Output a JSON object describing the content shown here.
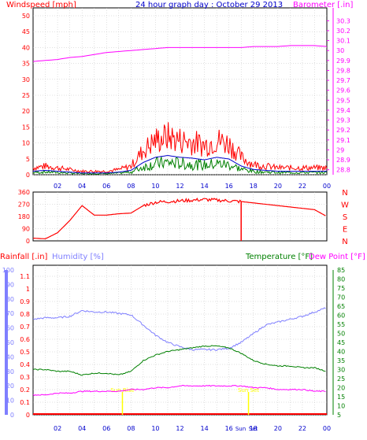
{
  "title": "24 hour graph day : October 29 2013",
  "colors": {
    "windspeed": "#ff0000",
    "gust": "#ff0000",
    "avgwind": "#0000cc",
    "avg2": "#008000",
    "barometer": "#ff00ff",
    "direction": "#ff0000",
    "rainfall": "#ff0000",
    "humidity": "#7f7fff",
    "temperature": "#008000",
    "dewpoint": "#ff00ff",
    "title": "#0000cc",
    "axis": "#000000",
    "grid": "#c0c0c0",
    "sun": "#ffff00"
  },
  "x_ticks": [
    "02",
    "04",
    "06",
    "08",
    "10",
    "12",
    "14",
    "16",
    "18",
    "20",
    "22",
    "00"
  ],
  "wind_panel": {
    "left_label": "Windspeed [mph]",
    "right_label": "Barometer [.in]",
    "left_ticks": [
      "50",
      "45",
      "40",
      "35",
      "30",
      "25",
      "20",
      "15",
      "10",
      "5",
      "0"
    ],
    "right_ticks": [
      "30.3",
      "30.2",
      "30.1",
      "30",
      "29.9",
      "29.8",
      "29.7",
      "29.6",
      "29.5",
      "29.4",
      "29.3",
      "29.2",
      "29.1",
      "29",
      "28.9",
      "28.8"
    ]
  },
  "dir_panel": {
    "left_ticks": [
      "360",
      "270",
      "180",
      "90",
      "0"
    ],
    "right_ticks": [
      "N",
      "W",
      "S",
      "E",
      "N"
    ]
  },
  "bottom_panel": {
    "rain_label": "Rainfall [.in]",
    "hum_label": "Humidity [%]",
    "temp_label": "Temperature [°F]",
    "dew_label": "Dew Point [°F]",
    "hum_ticks": [
      "100",
      "90",
      "80",
      "70",
      "60",
      "50",
      "40",
      "30",
      "20",
      "10",
      "0"
    ],
    "rain_ticks": [
      "1.1",
      "1",
      "0.9",
      "0.8",
      "0.7",
      "0.6",
      "0.5",
      "0.4",
      "0.3",
      "0.2",
      "0.1",
      "0"
    ],
    "temp_ticks": [
      "85",
      "80",
      "75",
      "70",
      "65",
      "60",
      "55",
      "50",
      "45",
      "40",
      "35",
      "30",
      "25",
      "20",
      "15",
      "10",
      "5"
    ],
    "sun_labels": [
      "Sun Rise",
      "Sun Set"
    ],
    "sun_ticks": [
      "Sun",
      "Set"
    ]
  },
  "chart_data": {
    "type": "line",
    "title": "24 hour graph day : October 29 2013",
    "x": [
      0,
      1,
      2,
      3,
      4,
      5,
      6,
      7,
      8,
      9,
      10,
      11,
      12,
      13,
      14,
      15,
      16,
      17,
      18,
      19,
      20,
      21,
      22,
      23,
      24
    ],
    "panels": [
      {
        "name": "wind",
        "ylabel_left": "Windspeed [mph]",
        "ylabel_right": "Barometer [.in]",
        "ylim_left": [
          0,
          50
        ],
        "ylim_right": [
          28.75,
          30.35
        ],
        "series": [
          {
            "name": "Windspeed [mph]",
            "axis": "left",
            "values": [
              2,
              2.5,
              2,
              1.5,
              1,
              1,
              1,
              1.5,
              2.5,
              7,
              10,
              11,
              10,
              9.5,
              8.5,
              10,
              9,
              5,
              3,
              2.5,
              2,
              2,
              2,
              2,
              2
            ]
          },
          {
            "name": "Barometer [.in]",
            "axis": "right",
            "values": [
              29.89,
              29.9,
              29.91,
              29.93,
              29.94,
              29.96,
              29.98,
              29.99,
              30.0,
              30.01,
              30.02,
              30.03,
              30.03,
              30.03,
              30.03,
              30.03,
              30.03,
              30.03,
              30.04,
              30.04,
              30.04,
              30.05,
              30.05,
              30.05,
              30.04
            ]
          }
        ]
      },
      {
        "name": "wind direction",
        "ylim": [
          0,
          360
        ],
        "series": [
          {
            "name": "Wind direction",
            "values": [
              20,
              15,
              60,
              150,
              260,
              190,
              190,
              200,
              205,
              260,
              285,
              290,
              295,
              300,
              305,
              300,
              295,
              290,
              280,
              270,
              260,
              250,
              240,
              230,
              180
            ]
          }
        ]
      },
      {
        "name": "rain humidity temperature",
        "ylim_humidity": [
          0,
          100
        ],
        "ylim_rain": [
          0,
          1.15
        ],
        "ylim_temp": [
          5,
          85
        ],
        "series": [
          {
            "name": "Humidity [%]",
            "axis": "humidity",
            "values": [
              66,
              67,
              67,
              68,
              72,
              71,
              71,
              70,
              69,
              62,
              55,
              50,
              47,
              45,
              45,
              45,
              46,
              50,
              56,
              62,
              64,
              66,
              68,
              71,
              74
            ]
          },
          {
            "name": "Temperature [°F]",
            "axis": "temp",
            "values": [
              30,
              30,
              29,
              29,
              27,
              28,
              28,
              27,
              29,
              35,
              38,
              40,
              41,
              42,
              43,
              43,
              42,
              39,
              35,
              33,
              32,
              32,
              31,
              31,
              29
            ]
          },
          {
            "name": "Dew Point [°F]",
            "axis": "temp",
            "values": [
              16,
              16,
              17,
              17,
              18,
              18,
              18,
              18,
              19,
              19,
              20,
              20,
              21,
              21,
              21,
              21,
              21,
              21,
              20,
              20,
              19,
              19,
              19,
              18,
              18
            ]
          },
          {
            "name": "Rainfall [.in]",
            "axis": "rain",
            "values": [
              0,
              0,
              0,
              0,
              0,
              0,
              0,
              0,
              0,
              0,
              0,
              0,
              0,
              0,
              0,
              0,
              0,
              0,
              0,
              0,
              0,
              0,
              0,
              0,
              0
            ]
          }
        ]
      }
    ]
  }
}
